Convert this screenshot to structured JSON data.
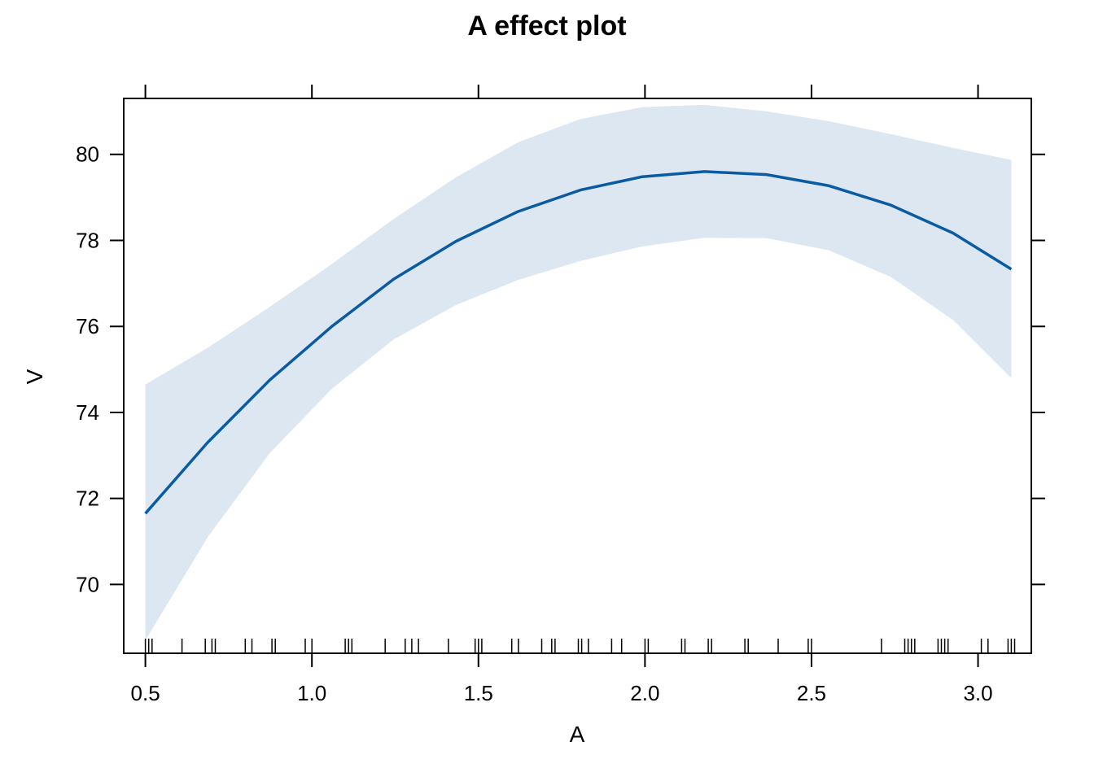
{
  "chart_data": {
    "type": "line",
    "title": "A effect plot",
    "xlabel": "A",
    "ylabel": "V",
    "xlim": [
      0.435,
      3.16
    ],
    "ylim": [
      68.4,
      81.3
    ],
    "x_ticks": [
      "0.5",
      "1.0",
      "1.5",
      "2.0",
      "2.5",
      "3.0"
    ],
    "y_ticks": [
      "70",
      "72",
      "74",
      "76",
      "78",
      "80"
    ],
    "colors": {
      "line": "#0b5ba3",
      "band": "#dce7f2",
      "frame": "#000000"
    },
    "series": [
      {
        "x": [
          0.5,
          0.687,
          0.873,
          1.06,
          1.246,
          1.433,
          1.619,
          1.806,
          1.992,
          2.179,
          2.365,
          2.552,
          2.738,
          2.925,
          3.1
        ],
        "fit": [
          71.65,
          73.3,
          74.75,
          76.0,
          77.1,
          77.98,
          78.67,
          79.17,
          79.48,
          79.6,
          79.53,
          79.27,
          78.82,
          78.17,
          77.33
        ],
        "lower": [
          68.7,
          71.1,
          73.05,
          74.55,
          75.7,
          76.5,
          77.08,
          77.52,
          77.86,
          78.06,
          78.05,
          77.77,
          77.15,
          76.15,
          74.8
        ],
        "upper": [
          74.65,
          75.5,
          76.45,
          77.45,
          78.5,
          79.47,
          80.28,
          80.82,
          81.1,
          81.15,
          81.0,
          80.77,
          80.47,
          80.15,
          79.87
        ]
      }
    ],
    "rug": [
      0.5,
      0.51,
      0.52,
      0.61,
      0.68,
      0.7,
      0.71,
      0.8,
      0.82,
      0.88,
      0.89,
      0.98,
      1.0,
      1.1,
      1.11,
      1.12,
      1.22,
      1.28,
      1.3,
      1.32,
      1.41,
      1.49,
      1.5,
      1.51,
      1.6,
      1.62,
      1.69,
      1.72,
      1.73,
      1.8,
      1.81,
      1.83,
      1.9,
      1.93,
      2.0,
      2.01,
      2.11,
      2.12,
      2.19,
      2.2,
      2.3,
      2.31,
      2.4,
      2.49,
      2.5,
      2.71,
      2.78,
      2.79,
      2.8,
      2.81,
      2.88,
      2.89,
      2.9,
      2.91,
      3.01,
      3.03,
      3.09,
      3.1,
      3.11
    ]
  }
}
